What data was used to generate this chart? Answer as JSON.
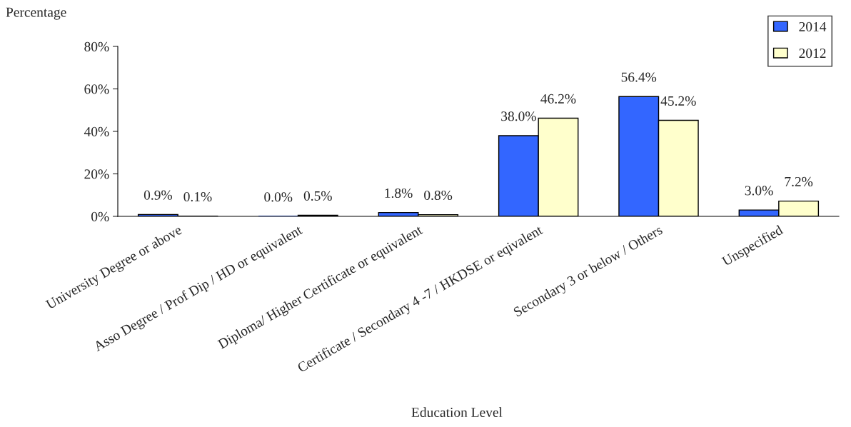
{
  "chart_data": {
    "type": "bar",
    "xlabel": "Education Level",
    "ylabel": "Percentage",
    "categories": [
      "University Degree or above",
      "Asso Degree / Prof Dip / HD or equivalent",
      "Diploma/ Higher Certificate or equivalent",
      "Certificate / Secondary 4 -7 / HKDSE or eqivalent",
      "Secondary 3 or below / Others",
      "Unspecified"
    ],
    "series": [
      {
        "name": "2014",
        "color": "#3366ff",
        "values": [
          0.9,
          0.0,
          1.8,
          38.0,
          56.4,
          3.0
        ],
        "value_labels": [
          "0.9%",
          "0.0%",
          "1.8%",
          "38.0%",
          "56.4%",
          "3.0%"
        ]
      },
      {
        "name": "2012",
        "color": "#ffffcc",
        "values": [
          0.1,
          0.5,
          0.8,
          46.2,
          45.2,
          7.2
        ],
        "value_labels": [
          "0.1%",
          "0.5%",
          "0.8%",
          "46.2%",
          "45.2%",
          "7.2%"
        ]
      }
    ],
    "ylim": [
      0,
      80
    ],
    "yticks": [
      {
        "value": 0,
        "label": "0%"
      },
      {
        "value": 20,
        "label": "20%"
      },
      {
        "value": 40,
        "label": "40%"
      },
      {
        "value": 60,
        "label": "60%"
      },
      {
        "value": 80,
        "label": "80%"
      }
    ],
    "grid": false,
    "legend": "top right"
  }
}
